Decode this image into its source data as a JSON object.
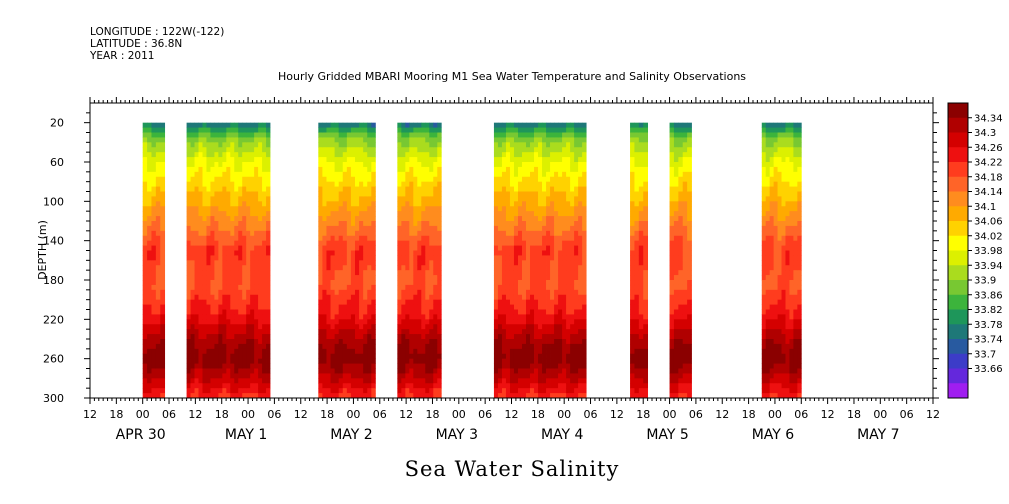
{
  "header": {
    "longitude": "LONGITUDE : 122W(-122)",
    "latitude": "LATITUDE : 36.8N",
    "year": "YEAR : 2011"
  },
  "chart_data": {
    "type": "heatmap",
    "title": "Hourly Gridded MBARI Mooring M1 Sea Water Temperature and Salinity Observations",
    "xlabel": "Sea Water Salinity",
    "ylabel": "DEPTH (m)",
    "y_ticks": [
      20,
      60,
      100,
      140,
      180,
      220,
      260,
      300
    ],
    "ylim": [
      300,
      0
    ],
    "x_hour_ticks": [
      "12",
      "18",
      "00",
      "06",
      "12",
      "18",
      "00",
      "06",
      "12",
      "18",
      "00",
      "06",
      "12",
      "18",
      "00",
      "06",
      "12",
      "18",
      "00",
      "06",
      "12",
      "18",
      "00",
      "06",
      "12",
      "18",
      "00",
      "06",
      "12",
      "18",
      "00",
      "06",
      "12"
    ],
    "x_hour_range": [
      -12,
      180
    ],
    "date_labels": [
      {
        "text": "APR 30",
        "hour": 0
      },
      {
        "text": "MAY 1",
        "hour": 24
      },
      {
        "text": "MAY 2",
        "hour": 48
      },
      {
        "text": "MAY 3",
        "hour": 72
      },
      {
        "text": "MAY 4",
        "hour": 96
      },
      {
        "text": "MAY 5",
        "hour": 120
      },
      {
        "text": "MAY 6",
        "hour": 144
      },
      {
        "text": "MAY 7",
        "hour": 168
      }
    ],
    "data_segments_hours": [
      [
        0,
        5
      ],
      [
        10,
        29
      ],
      [
        40,
        53
      ],
      [
        58,
        68
      ],
      [
        80,
        101
      ],
      [
        111,
        115
      ],
      [
        120,
        125
      ],
      [
        141,
        150
      ]
    ],
    "colorbar": {
      "levels": [
        "34.34",
        "34.3",
        "34.26",
        "34.22",
        "34.18",
        "34.14",
        "34.1",
        "34.06",
        "34.02",
        "33.98",
        "33.94",
        "33.9",
        "33.86",
        "33.82",
        "33.78",
        "33.74",
        "33.7",
        "33.66"
      ],
      "colors": [
        "#8b0000",
        "#b00000",
        "#d40000",
        "#ee1010",
        "#ff3c1e",
        "#ff6428",
        "#ff8c1e",
        "#ffaa00",
        "#ffd200",
        "#ffff00",
        "#dcf000",
        "#aadc1e",
        "#78c832",
        "#3cb43c",
        "#1e965a",
        "#1e7878",
        "#285aa0",
        "#3c3cc8",
        "#6428dc",
        "#a01ef0"
      ],
      "min": 33.66,
      "max": 34.34
    },
    "depth_profile": [
      {
        "depth": 20,
        "value": 33.8
      },
      {
        "depth": 35,
        "value": 33.92
      },
      {
        "depth": 60,
        "value": 34.0
      },
      {
        "depth": 90,
        "value": 34.06
      },
      {
        "depth": 120,
        "value": 34.12
      },
      {
        "depth": 150,
        "value": 34.19
      },
      {
        "depth": 185,
        "value": 34.17
      },
      {
        "depth": 215,
        "value": 34.22
      },
      {
        "depth": 240,
        "value": 34.29
      },
      {
        "depth": 260,
        "value": 34.33
      },
      {
        "depth": 280,
        "value": 34.27
      },
      {
        "depth": 300,
        "value": 34.2
      }
    ]
  }
}
